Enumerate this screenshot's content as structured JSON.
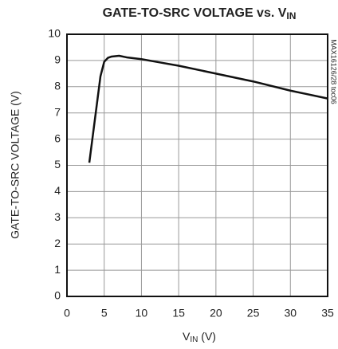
{
  "chart_data": {
    "type": "line",
    "title": {
      "main": "GATE-TO-SRC VOLTAGE vs. V",
      "sub": "IN"
    },
    "x_label": {
      "main": "V",
      "sub": "IN",
      "unit": " (V)"
    },
    "y_label": "GATE-TO-SRC VOLTAGE (V)",
    "annotation": "MAX16126/28 toc06",
    "x": [
      3,
      3.5,
      4,
      4.5,
      5,
      5.5,
      6,
      7,
      8,
      10,
      12,
      15,
      20,
      25,
      30,
      35
    ],
    "series": [
      {
        "name": "GATE-TO-SRC VOLTAGE",
        "color": "#111111",
        "values": [
          5.1,
          6.2,
          7.3,
          8.4,
          8.95,
          9.1,
          9.15,
          9.18,
          9.12,
          9.05,
          8.95,
          8.8,
          8.5,
          8.2,
          7.85,
          7.55
        ]
      }
    ],
    "xlim": [
      0,
      35
    ],
    "xticks": [
      0,
      5,
      10,
      15,
      20,
      25,
      30,
      35
    ],
    "ylim": [
      0,
      10
    ],
    "yticks": [
      0,
      1,
      2,
      3,
      4,
      5,
      6,
      7,
      8,
      9,
      10
    ],
    "grid": true
  }
}
